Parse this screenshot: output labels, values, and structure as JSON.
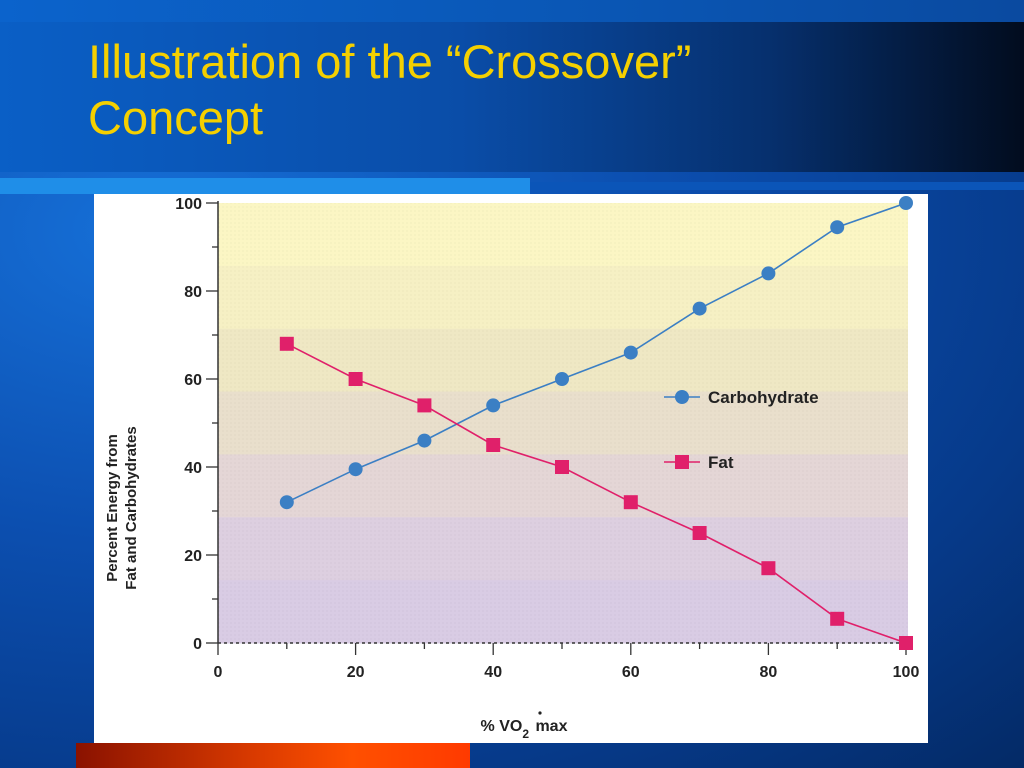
{
  "slide": {
    "title_line1": "Illustration of the “Crossover”",
    "title_line2": "Concept"
  },
  "colors": {
    "title": "#f5d000",
    "carbohydrate": "#3b7fc4",
    "fat": "#e0206a",
    "accent_line": "#1f8ee8"
  },
  "chart_data": {
    "type": "line",
    "xlabel": "% V̇O₂ max",
    "xlabel_parts": {
      "prefix": "% V",
      "sub": "2",
      "suffix": " max",
      "mid": "O"
    },
    "ylabel_line1": "Percent Energy from",
    "ylabel_line2": "Fat and Carbohydrates",
    "xlim": [
      0,
      100
    ],
    "ylim": [
      0,
      100
    ],
    "xticks": [
      0,
      20,
      40,
      60,
      80,
      100
    ],
    "yticks": [
      0,
      20,
      40,
      60,
      80,
      100
    ],
    "legend_position": "right-middle",
    "background_bands": [
      "#fbf6c4",
      "#f6f0c4",
      "#efe8c4",
      "#e9dfcc",
      "#e4d6d6",
      "#ddcfe0",
      "#d9cce4"
    ],
    "series": [
      {
        "name": "Carbohydrate",
        "marker": "circle",
        "color": "#3b7fc4",
        "x": [
          10,
          20,
          30,
          40,
          50,
          60,
          70,
          80,
          90,
          100
        ],
        "y": [
          32,
          39.5,
          46,
          54,
          60,
          66,
          76,
          84,
          94.5,
          100
        ]
      },
      {
        "name": "Fat",
        "marker": "square",
        "color": "#e0206a",
        "x": [
          10,
          20,
          30,
          40,
          50,
          60,
          70,
          80,
          90,
          100
        ],
        "y": [
          68,
          60,
          54,
          45,
          40,
          32,
          25,
          17,
          5.5,
          0
        ]
      }
    ]
  }
}
